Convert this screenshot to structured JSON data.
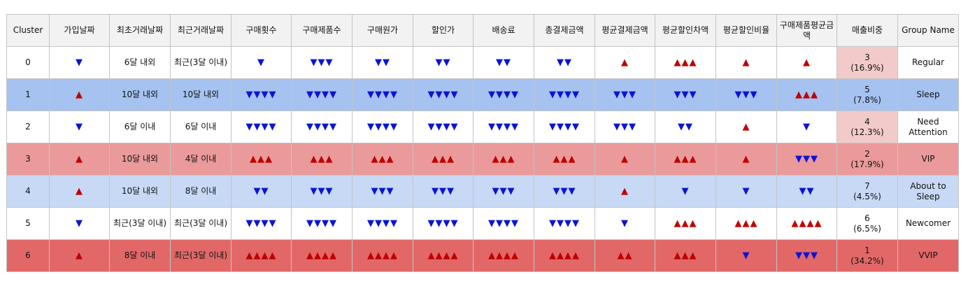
{
  "colors": {
    "up": "#c00000",
    "down": "#0a14d8",
    "sleep_row": "#a6c2f0",
    "about_to_sleep_row": "#c8d9f5",
    "vip_row": "#ea9a9a",
    "vvip_row": "#e26868",
    "share_light_red": "#f3caca"
  },
  "headers": [
    "Cluster",
    "가입날짜",
    "최초거래날짜",
    "최근거래날짜",
    "구매횟수",
    "구매제품수",
    "구매원가",
    "할인가",
    "배송료",
    "총결제금액",
    "평균결제금액",
    "평균할인차액",
    "평균할인비율",
    "구매제품평균금액",
    "매출비중",
    "Group Name"
  ],
  "rows": [
    {
      "cells": [
        "0",
        "▼",
        "6달 내외",
        "최근(3달 이내)",
        "▼",
        "▼▼▼",
        "▼▼",
        "▼▼",
        "▼▼",
        "▼▼",
        "▲",
        "▲▲▲",
        "▲",
        "▲",
        "3\n(16.9%)",
        "Regular"
      ],
      "row_bg": "",
      "share_bg": "#f3caca"
    },
    {
      "cells": [
        "1",
        "▲",
        "10달 내외",
        "10달 내외",
        "▼▼▼▼",
        "▼▼▼▼",
        "▼▼▼▼",
        "▼▼▼▼",
        "▼▼▼▼",
        "▼▼▼▼",
        "▼▼▼",
        "▼▼▼",
        "▼▼▼",
        "▲▲▲",
        "5\n(7.8%)",
        "Sleep"
      ],
      "row_bg": "#a6c2f0",
      "share_bg": ""
    },
    {
      "cells": [
        "2",
        "▼",
        "6달 이내",
        "6달 이내",
        "▼▼▼▼",
        "▼▼▼▼",
        "▼▼▼▼",
        "▼▼▼▼",
        "▼▼▼▼",
        "▼▼▼▼",
        "▼▼▼",
        "▼▼",
        "▲",
        "▼",
        "4\n(12.3%)",
        "Need\nAttention"
      ],
      "row_bg": "",
      "share_bg": "#f3caca"
    },
    {
      "cells": [
        "3",
        "▲",
        "10달 내외",
        "4달 이내",
        "▲▲▲",
        "▲▲▲",
        "▲▲▲",
        "▲▲▲",
        "▲▲▲",
        "▲▲▲",
        "▲",
        "▲▲▲",
        "▲",
        "▼▼▼",
        "2\n(17.9%)",
        "VIP"
      ],
      "row_bg": "#ea9a9a",
      "share_bg": ""
    },
    {
      "cells": [
        "4",
        "▲",
        "10달 내외",
        "8달 이내",
        "▼▼",
        "▼▼▼",
        "▼▼▼",
        "▼▼▼",
        "▼▼▼",
        "▼▼▼",
        "▲",
        "▼",
        "▼",
        "▼▼",
        "7\n(4.5%)",
        "About to\nSleep"
      ],
      "row_bg": "#c8d9f5",
      "share_bg": ""
    },
    {
      "cells": [
        "5",
        "▼",
        "최근(3달 이내)",
        "최근(3달 이내)",
        "▼▼▼▼",
        "▼▼▼▼",
        "▼▼▼▼",
        "▼▼▼▼",
        "▼▼▼▼",
        "▼▼▼▼",
        "▼",
        "▲▲▲",
        "▲▲▲",
        "▲▲▲▲",
        "6\n(6.5%)",
        "Newcomer"
      ],
      "row_bg": "",
      "share_bg": ""
    },
    {
      "cells": [
        "6",
        "▲",
        "8달 이내",
        "최근(3달 이내)",
        "▲▲▲▲",
        "▲▲▲▲",
        "▲▲▲▲",
        "▲▲▲▲",
        "▲▲▲▲",
        "▲▲▲▲",
        "▲▲",
        "▲▲▲",
        "▼",
        "▼▼▼",
        "1\n(34.2%)",
        "VVIP"
      ],
      "row_bg": "#e26868",
      "share_bg": ""
    }
  ]
}
